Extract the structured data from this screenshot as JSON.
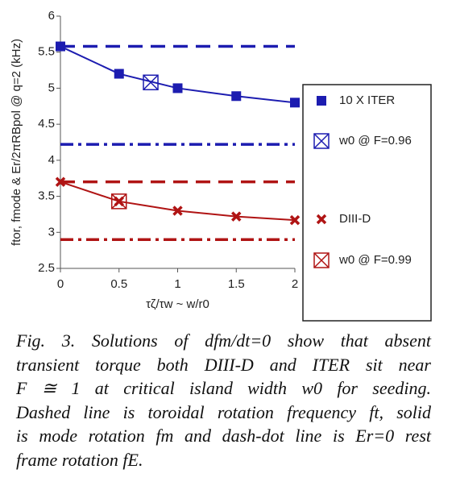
{
  "chart_data": {
    "type": "line",
    "y_label": "ftor, fmode & Er/2πRBpol @ q=2 (kHz)",
    "x_label": "τζ/τw ~ w/r0",
    "xlim": [
      0,
      2
    ],
    "xticks": [
      0,
      0.5,
      1,
      1.5,
      2
    ],
    "ylim": [
      2.5,
      6
    ],
    "yticks": [
      6,
      5.5,
      5,
      4.5,
      4,
      3.5,
      3,
      2.5
    ],
    "series": [
      {
        "name": "10 X ITER",
        "color": "#1c1cb0",
        "marker": "square",
        "line": true,
        "x": [
          0,
          0.5,
          1,
          1.5,
          2
        ],
        "values": [
          5.58,
          5.2,
          5.0,
          4.89,
          4.8
        ]
      },
      {
        "name": "w0 @ F=0.96",
        "color": "#1c1cb0",
        "marker": "boxed-x",
        "line": false,
        "x": [
          0.77
        ],
        "values": [
          5.08
        ]
      },
      {
        "name": "DIII-D",
        "color": "#b01414",
        "marker": "x",
        "line": true,
        "x": [
          0,
          0.5,
          1,
          1.5,
          2
        ],
        "values": [
          3.7,
          3.43,
          3.3,
          3.22,
          3.17
        ]
      },
      {
        "name": "w0 @ F=0.99",
        "color": "#b01414",
        "marker": "boxed-x",
        "line": false,
        "x": [
          0.5
        ],
        "values": [
          3.43
        ]
      }
    ],
    "reference_lines": [
      {
        "value": 5.58,
        "color": "#1c1cb0",
        "style": "dashed"
      },
      {
        "value": 4.22,
        "color": "#1c1cb0",
        "style": "dash-dot"
      },
      {
        "value": 3.7,
        "color": "#b01414",
        "style": "dashed"
      },
      {
        "value": 2.9,
        "color": "#b01414",
        "style": "dash-dot"
      }
    ],
    "caption": [
      "Fig. 3. Solutions of dfm/dt=0 show that absent",
      "transient torque both DIII-D and ITER sit near",
      "F ≅ 1 at critical island width w0 for seeding.",
      "Dashed line is toroidal rotation frequency ft, solid",
      "is mode rotation fm and dash-dot line is Er=0 rest",
      "frame rotation fE."
    ]
  }
}
